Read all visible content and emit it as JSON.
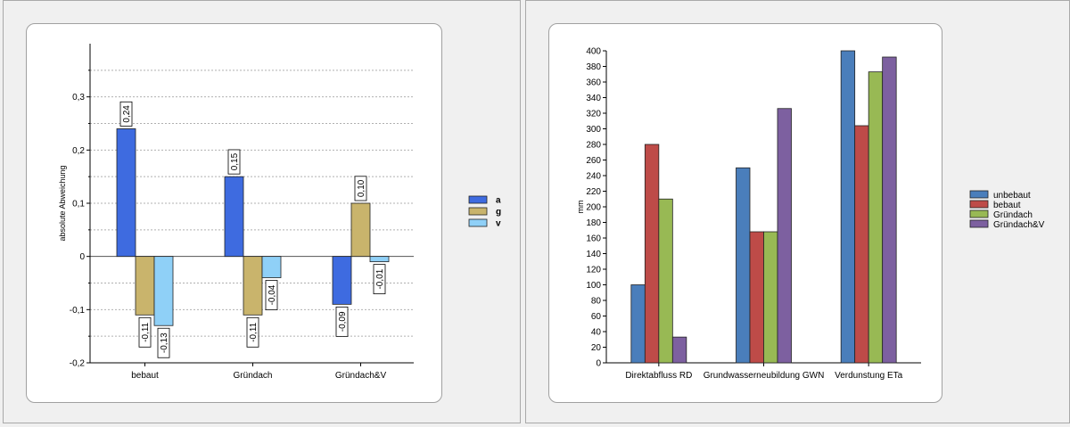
{
  "chart_data": [
    {
      "type": "bar",
      "ylabel": "absolute Abweichung",
      "ylim": [
        -0.2,
        0.4
      ],
      "yticks": [
        "-0,2",
        "-0,1",
        "0",
        "0,1",
        "0,2",
        "0,3"
      ],
      "categories": [
        "bebaut",
        "Gründach",
        "Gründach&V"
      ],
      "series": [
        {
          "name": "a",
          "values": [
            0.24,
            0.15,
            -0.09
          ],
          "labels": [
            "0,24",
            "0,15",
            "-0,09"
          ],
          "color": "#3e6be0"
        },
        {
          "name": "g",
          "values": [
            -0.11,
            -0.11,
            0.1
          ],
          "labels": [
            "-0,11",
            "-0,11",
            "0,10"
          ],
          "color": "#c9b46c"
        },
        {
          "name": "v",
          "values": [
            -0.13,
            -0.04,
            -0.01
          ],
          "labels": [
            "-0,13",
            "-0,04",
            "-0,01"
          ],
          "color": "#8fd0f7"
        }
      ],
      "grid": true,
      "legend": "right"
    },
    {
      "type": "bar",
      "ylabel": "mm",
      "ylim": [
        0,
        400
      ],
      "ytick_step": 20,
      "categories": [
        "Direktabfluss RD",
        "Grundwasserneubildung GWN",
        "Verdunstung ETa"
      ],
      "series": [
        {
          "name": "unbebaut",
          "values": [
            100,
            250,
            400
          ],
          "color": "#4a7ebb"
        },
        {
          "name": "bebaut",
          "values": [
            280,
            168,
            304
          ],
          "color": "#be4b48"
        },
        {
          "name": "Gründach",
          "values": [
            210,
            168,
            373
          ],
          "color": "#98b954"
        },
        {
          "name": "Gründach&V",
          "values": [
            33,
            326,
            392
          ],
          "color": "#7d60a0"
        }
      ],
      "grid": false,
      "legend": "right"
    }
  ]
}
